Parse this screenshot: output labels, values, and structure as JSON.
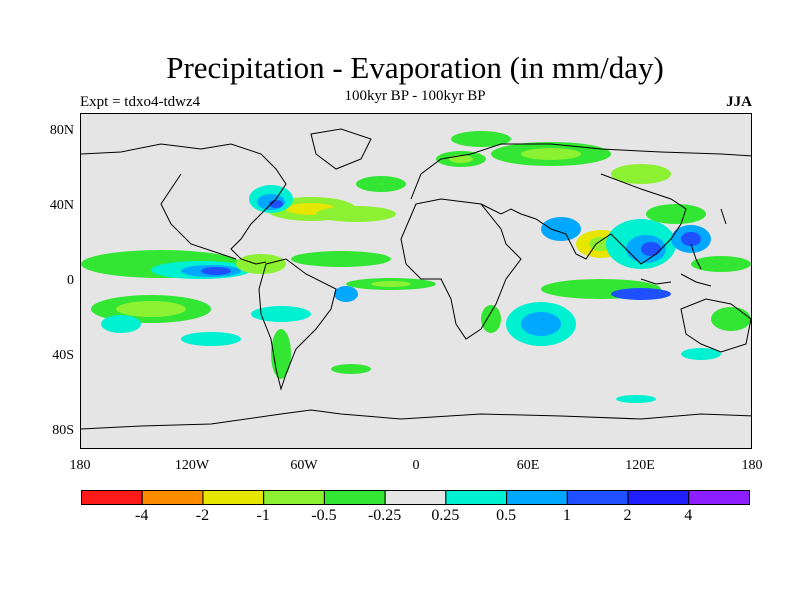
{
  "header": {
    "title": "Precipitation - Evaporation (in mm/day)",
    "subtitle": "100kyr BP - 100kyr BP",
    "left_label": "Expt = tdxo4-tdwz4",
    "season": "JJA"
  },
  "axes": {
    "lat_ticks": [
      "80N",
      "40N",
      "0",
      "40S",
      "80S"
    ],
    "lon_ticks": [
      "180",
      "120W",
      "60W",
      "0",
      "60E",
      "120E",
      "180"
    ]
  },
  "colorbar": {
    "colors": [
      "#ff1a1a",
      "#ff8c00",
      "#e6e600",
      "#8cf033",
      "#33e633",
      "#e5e5e5",
      "#00f0d2",
      "#00a8ff",
      "#1e50ff",
      "#1e1eff",
      "#8c1eff"
    ],
    "labels": [
      "-4",
      "-2",
      "-1",
      "-0.5",
      "-0.25",
      "0.25",
      "0.5",
      "1",
      "2",
      "4"
    ]
  },
  "palette": {
    "background": "#e5e5e5",
    "coast": "#000000"
  }
}
